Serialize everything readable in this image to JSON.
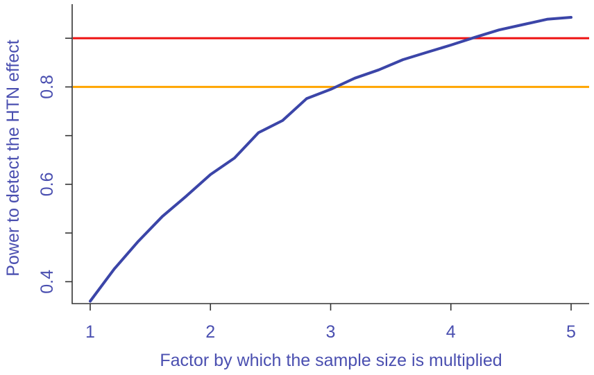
{
  "chart_data": {
    "type": "line",
    "title": "",
    "xlabel": "Factor by which the sample size is multiplied",
    "ylabel": "Power to detect the HTN effect",
    "xlim": [
      0.85,
      5.15
    ],
    "ylim": [
      0.355,
      0.97
    ],
    "x_ticks": [
      1,
      2,
      3,
      4,
      5
    ],
    "y_ticks": [
      0.4,
      0.6,
      0.8
    ],
    "y_minor_ticks": [
      0.5,
      0.7,
      0.9
    ],
    "x_tick_labels": [
      "1",
      "2",
      "3",
      "4",
      "5"
    ],
    "y_tick_labels": [
      "0.4",
      "0.6",
      "0.8"
    ],
    "grid": false,
    "series": [
      {
        "color": "#3b45a8",
        "x": [
          1.0,
          1.2,
          1.4,
          1.6,
          1.8,
          2.0,
          2.2,
          2.4,
          2.6,
          2.8,
          3.0,
          3.2,
          3.4,
          3.6,
          3.8,
          4.0,
          4.2,
          4.4,
          4.6,
          4.8,
          5.0
        ],
        "y": [
          0.36,
          0.426,
          0.483,
          0.534,
          0.576,
          0.62,
          0.654,
          0.706,
          0.731,
          0.776,
          0.795,
          0.818,
          0.835,
          0.856,
          0.871,
          0.886,
          0.902,
          0.917,
          0.928,
          0.939,
          0.943
        ]
      }
    ],
    "reference_lines": [
      {
        "y": 0.9,
        "color": "#ee1111"
      },
      {
        "y": 0.8,
        "color": "#ffa500"
      }
    ]
  }
}
